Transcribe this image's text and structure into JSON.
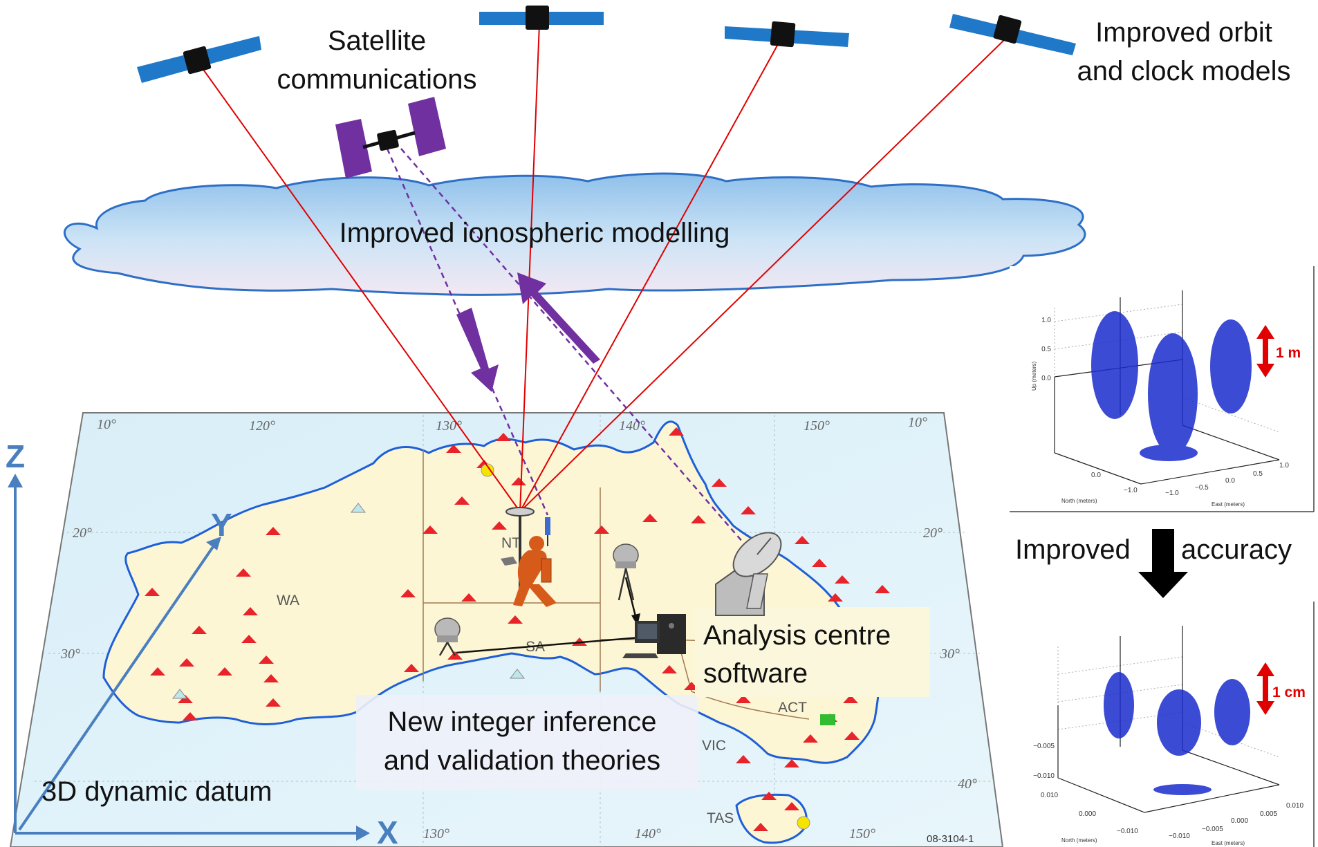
{
  "labels": {
    "satcom": [
      "Satellite",
      "communications"
    ],
    "orbit": [
      "Improved orbit",
      "and clock models"
    ],
    "iono": "Improved ionospheric modelling",
    "analysis": [
      "Analysis centre",
      "software"
    ],
    "integer": [
      "New integer inference",
      "and validation theories"
    ],
    "datum": "3D dynamic datum",
    "improved": "Improved",
    "accuracy": "accuracy",
    "code": "08-3104-1"
  },
  "map": {
    "lon_ticks_top": [
      "10°",
      "120°",
      "130°",
      "140°",
      "150°",
      "10°"
    ],
    "lon_ticks_bottom": [
      "130°",
      "140°",
      "150°"
    ],
    "lat_ticks_left": [
      "20°",
      "30°"
    ],
    "lat_ticks_right": [
      "20°",
      "30°",
      "40°"
    ],
    "regions": [
      "WA",
      "NT",
      "SA",
      "ACT",
      "VIC",
      "TAS"
    ]
  },
  "axes": {
    "z": "Z",
    "y": "Y",
    "x": "X"
  },
  "plot_top": {
    "scale": "1 m",
    "up_ticks": [
      "1.0",
      "0.5",
      "0.0"
    ],
    "north_ticks": [
      "0.0",
      "−1.0"
    ],
    "east_ticks": [
      "−1.0",
      "−0.5",
      "0.0",
      "0.5",
      "1.0"
    ],
    "up_label": "Up (meters)",
    "north_label": "North (meters)",
    "east_label": "East (meters)"
  },
  "plot_bottom": {
    "scale": "1 cm",
    "up_ticks": [
      "−0.005",
      "−0.010"
    ],
    "north_ticks": [
      "0.010",
      "0.000",
      "−0.010"
    ],
    "east_ticks": [
      "−0.010",
      "−0.005",
      "0.000",
      "0.005",
      "0.010"
    ],
    "north_label": "North (meters)",
    "east_label": "East (meters)"
  },
  "colors": {
    "accent_blue": "#4a7fbf",
    "station_red": "#e8242a",
    "satcom_purple": "#7030a0",
    "signal_red": "#e00000"
  }
}
